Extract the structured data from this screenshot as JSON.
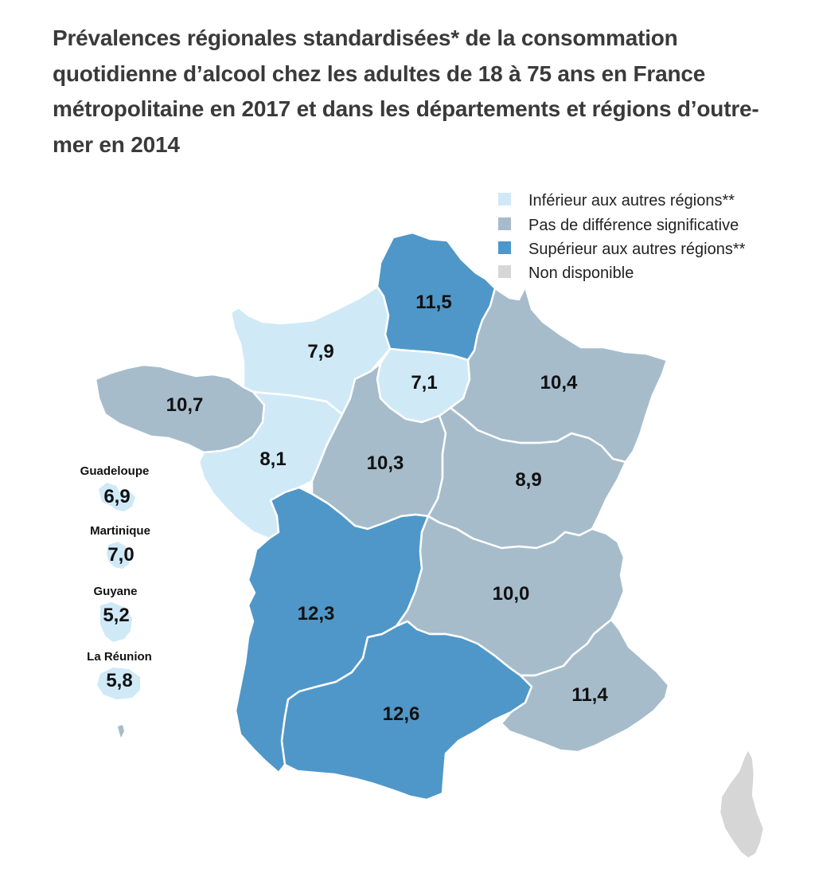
{
  "title": "Prévalences régionales standardisées* de la consommation quotidienne d’alcool chez les adultes de 18 à 75 ans en France métropolitaine en 2017 et dans les départements et régions d’outre-mer en 2014",
  "colors": {
    "inferieur": "#cfe9f7",
    "pas_de_difference": "#a6bccb",
    "superieur": "#4f97c8",
    "non_disponible": "#d6d6d6"
  },
  "legend": [
    {
      "label": "Inférieur aux autres régions**",
      "category": "inferieur"
    },
    {
      "label": "Pas de différence significative",
      "category": "pas_de_difference"
    },
    {
      "label": "Supérieur aux autres régions**",
      "category": "superieur"
    },
    {
      "label": "Non disponible",
      "category": "non_disponible"
    }
  ],
  "regions": [
    {
      "value": "11,5",
      "category": "superieur"
    },
    {
      "value": "7,9",
      "category": "inferieur"
    },
    {
      "value": "7,1",
      "category": "inferieur"
    },
    {
      "value": "10,4",
      "category": "pas_de_difference"
    },
    {
      "value": "10,7",
      "category": "pas_de_difference"
    },
    {
      "value": "8,1",
      "category": "inferieur"
    },
    {
      "value": "10,3",
      "category": "pas_de_difference"
    },
    {
      "value": "8,9",
      "category": "pas_de_difference"
    },
    {
      "value": "12,3",
      "category": "superieur"
    },
    {
      "value": "10,0",
      "category": "pas_de_difference"
    },
    {
      "value": "12,6",
      "category": "superieur"
    },
    {
      "value": "11,4",
      "category": "pas_de_difference"
    },
    {
      "value": "",
      "category": "non_disponible"
    }
  ],
  "overseas": [
    {
      "name": "Guadeloupe",
      "value": "6,9",
      "category": "inferieur"
    },
    {
      "name": "Martinique",
      "value": "7,0",
      "category": "inferieur"
    },
    {
      "name": "Guyane",
      "value": "5,2",
      "category": "inferieur"
    },
    {
      "name": "La Réunion",
      "value": "5,8",
      "category": "inferieur"
    }
  ]
}
